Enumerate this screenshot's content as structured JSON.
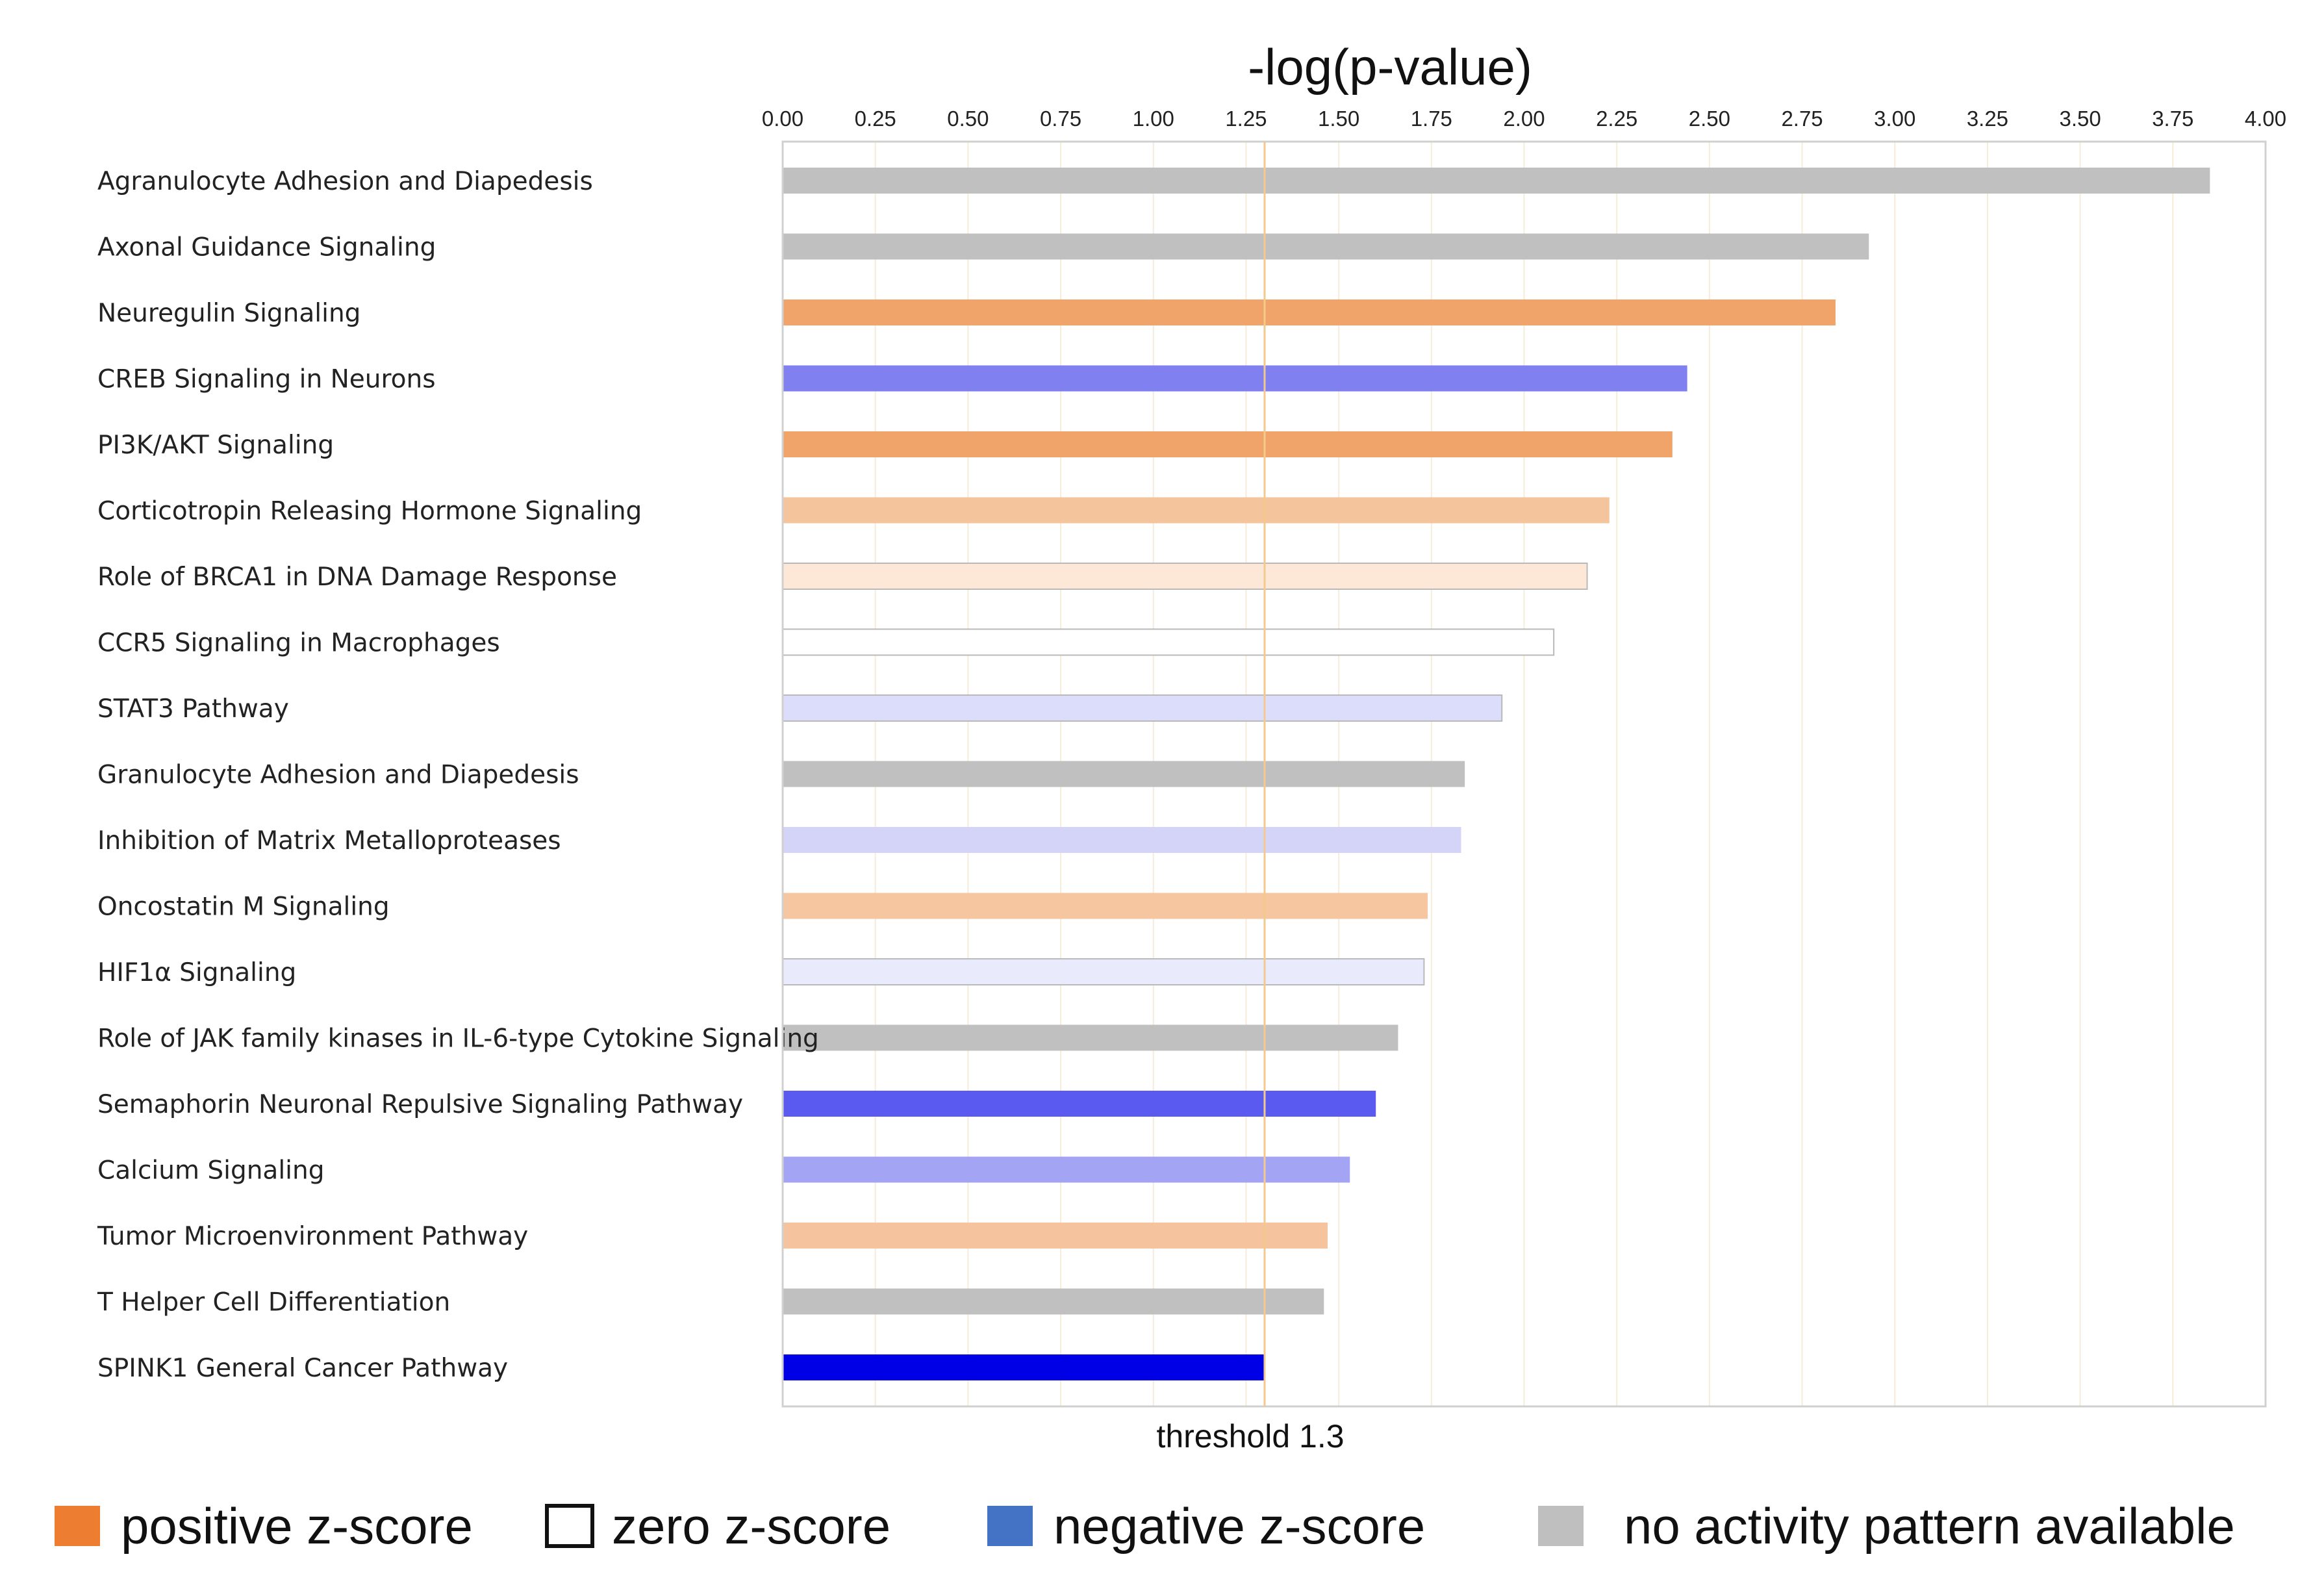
{
  "chart_data": {
    "type": "bar",
    "orientation": "horizontal",
    "title": "-log(p-value)",
    "xlabel": "",
    "ylabel": "",
    "xlim": [
      0,
      4.0
    ],
    "ticks": [
      "0.00",
      "0.25",
      "0.50",
      "0.75",
      "1.00",
      "1.25",
      "1.50",
      "1.75",
      "2.00",
      "2.25",
      "2.50",
      "2.75",
      "3.00",
      "3.25",
      "3.50",
      "3.75",
      "4.00"
    ],
    "grid": true,
    "threshold": {
      "value": 1.3,
      "label": "threshold 1.3",
      "color": "#f3c98e"
    },
    "categories": [
      "Agranulocyte Adhesion and Diapedesis",
      "Axonal Guidance Signaling",
      "Neuregulin Signaling",
      "CREB Signaling in Neurons",
      "PI3K/AKT Signaling",
      "Corticotropin Releasing Hormone Signaling",
      "Role of BRCA1 in DNA Damage Response",
      "CCR5 Signaling in Macrophages",
      "STAT3 Pathway",
      "Granulocyte Adhesion and Diapedesis",
      "Inhibition of Matrix Metalloproteases",
      "Oncostatin M Signaling",
      "HIF1α Signaling",
      "Role of JAK family kinases in IL-6-type Cytokine Signaling",
      "Semaphorin Neuronal Repulsive Signaling Pathway",
      "Calcium Signaling",
      "Tumor Microenvironment Pathway",
      "T Helper Cell Differentiation",
      "SPINK1 General Cancer Pathway"
    ],
    "values": [
      3.85,
      2.93,
      2.84,
      2.44,
      2.4,
      2.23,
      2.17,
      2.08,
      1.94,
      1.84,
      1.83,
      1.74,
      1.73,
      1.66,
      1.6,
      1.53,
      1.47,
      1.46,
      1.3
    ],
    "bar_colors": [
      "#c0c0c0",
      "#c0c0c0",
      "#f0a46a",
      "#8080f0",
      "#f0a46a",
      "#f4c49c",
      "#fde8d8",
      "#ffffff",
      "#dcdcfb",
      "#c0c0c0",
      "#d4d4f8",
      "#f5c69f",
      "#eaeafd",
      "#c0c0c0",
      "#5a5af0",
      "#a4a4f4",
      "#f5c39d",
      "#c0c0c0",
      "#0000e6"
    ],
    "legend": [
      {
        "label": "positive z-score",
        "color": "#ed7d31"
      },
      {
        "label": "zero z-score",
        "color": "#ffffff"
      },
      {
        "label": "negative z-score",
        "color": "#4472c4"
      },
      {
        "label": "no activity pattern available",
        "color": "#bfbfbf"
      }
    ]
  }
}
